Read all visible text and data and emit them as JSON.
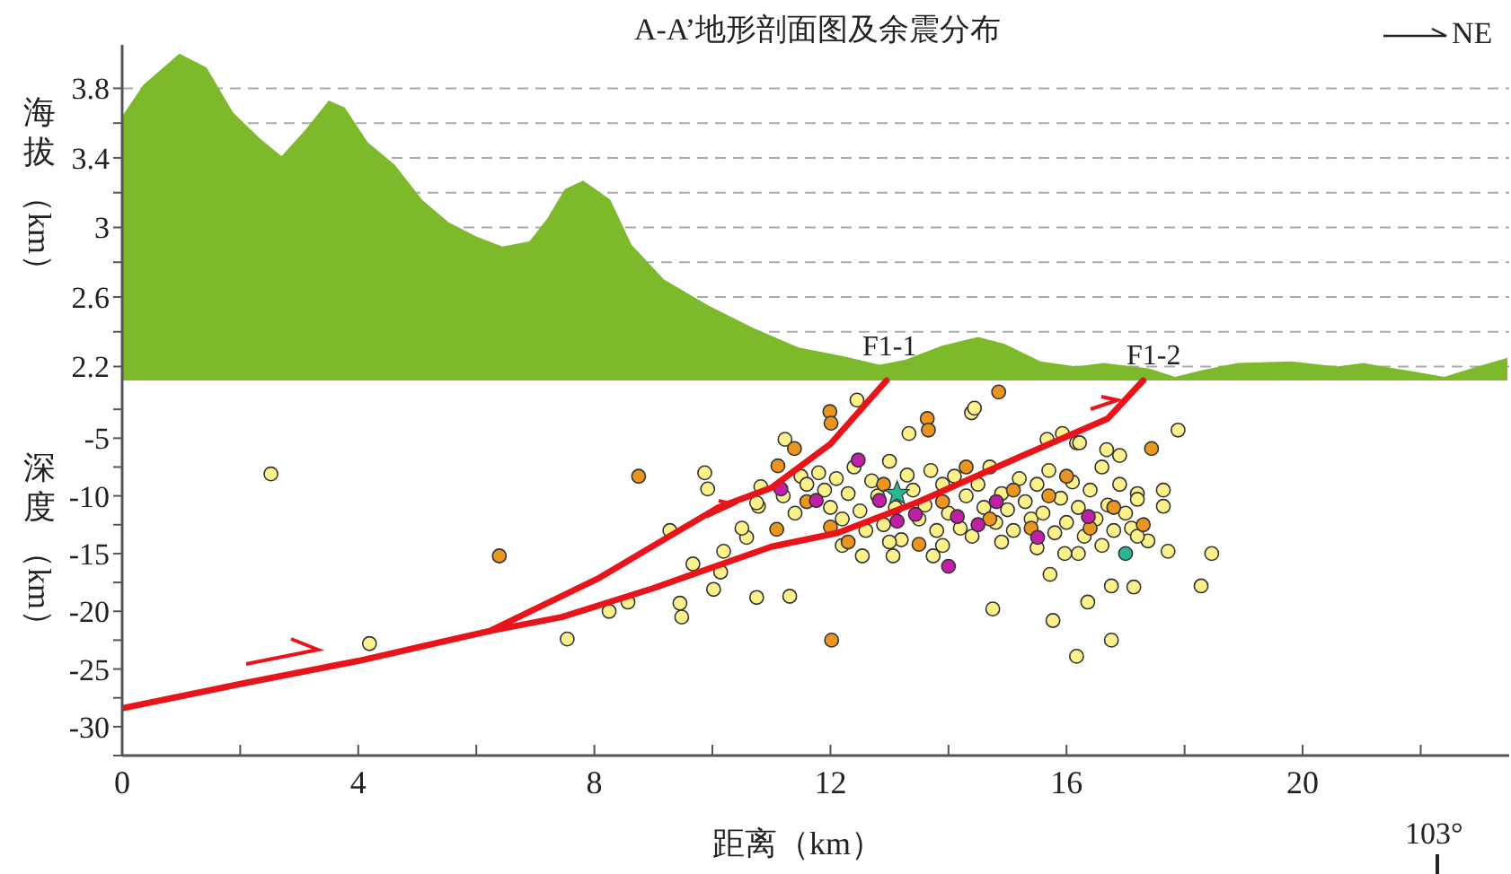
{
  "chart_data": [
    {
      "type": "area",
      "title": "A-A’地形剖面图及余震分布",
      "ylabel": "海拔（km）",
      "x": [
        0,
        0.36,
        0.97,
        1.43,
        1.88,
        2.34,
        2.7,
        3.1,
        3.5,
        3.77,
        4.16,
        4.62,
        5.08,
        5.53,
        5.99,
        6.44,
        6.9,
        7.2,
        7.5,
        7.81,
        8.27,
        8.63,
        9.18,
        9.94,
        10.7,
        11.46,
        12.22,
        12.83,
        13.28,
        13.89,
        14.5,
        14.95,
        15.56,
        16.17,
        16.63,
        17.39,
        17.84,
        18.3,
        18.9,
        19.82,
        20.58,
        21.03,
        21.9,
        22.4,
        22.86,
        23.47
      ],
      "series": [
        {
          "color": "#7dba2b",
          "values": [
            3.64,
            3.82,
            4.0,
            3.92,
            3.66,
            3.51,
            3.41,
            3.56,
            3.73,
            3.69,
            3.49,
            3.36,
            3.16,
            3.03,
            2.95,
            2.89,
            2.92,
            3.05,
            3.22,
            3.27,
            3.16,
            2.9,
            2.7,
            2.55,
            2.42,
            2.31,
            2.26,
            2.21,
            2.24,
            2.32,
            2.37,
            2.33,
            2.23,
            2.2,
            2.22,
            2.19,
            2.14,
            2.18,
            2.22,
            2.23,
            2.2,
            2.22,
            2.17,
            2.14,
            2.19,
            2.25
          ]
        }
      ],
      "xlim": [
        0,
        23.5
      ],
      "ylim": [
        2.12,
        4.05
      ],
      "yticks": [
        2.2,
        {
          "value": 2.4,
          "label": null
        },
        2.6,
        {
          "value": 2.8,
          "label": null
        },
        3,
        {
          "value": 3.2,
          "label": null
        },
        3.4,
        {
          "value": 3.6,
          "label": null
        },
        3.8
      ],
      "grid": "y",
      "tick_labels": "y",
      "annotations": [
        "F1-1",
        "F1-2",
        "NE"
      ]
    },
    {
      "type": "scatter",
      "xlabel": "距离（km）",
      "ylabel": "深度（km）",
      "xlim": [
        0,
        23.5
      ],
      "ylim": [
        -32.5,
        0
      ],
      "xticks": [
        0,
        {
          "value": 2,
          "label": null
        },
        4,
        {
          "value": 6,
          "label": null
        },
        8,
        {
          "value": 10,
          "label": null
        },
        12,
        {
          "value": 14,
          "label": null
        },
        16,
        {
          "value": 18,
          "label": null
        },
        20,
        {
          "value": 22,
          "label": null
        }
      ],
      "yticks": [
        {
          "value": -2.5,
          "label": null
        },
        -5,
        {
          "value": -7.5,
          "label": null
        },
        -10,
        {
          "value": -12.5,
          "label": null
        },
        -15,
        {
          "value": -17.5,
          "label": null
        },
        -20,
        {
          "value": -22.5,
          "label": null
        },
        -25,
        {
          "value": -27.5,
          "label": null
        },
        -30,
        {
          "value": -32.5,
          "label": null
        }
      ],
      "marker": "circle",
      "series": [
        {
          "color": "#fbf08a",
          "x": [
            2.52,
            4.19,
            7.54,
            8.25,
            8.57,
            9.28,
            9.45,
            9.48,
            9.67,
            9.87,
            9.92,
            10.02,
            10.14,
            10.58,
            10.78,
            10.75,
            17.89,
            10.75,
            11.31,
            14.75,
            15.77,
            16.17,
            16.76,
            16.36,
            16.76,
            17.14,
            18.28,
            18.46,
            17.72,
            15.72,
            17.64,
            17.64,
            17.38,
            17.2,
            16.68,
            16.9,
            16.17,
            14.39,
            14.44,
            13.33,
            12.45,
            11.23,
            10.82,
            10.5,
            10.19,
            13.06,
            12.54,
            13.74,
            15.97,
            16.2,
            15.93,
            16.22,
            15.67,
            11.5,
            11.6,
            11.8,
            11.9,
            12.0,
            12.1,
            12.2,
            12.3,
            12.4,
            12.5,
            12.6,
            12.7,
            12.8,
            12.9,
            13.0,
            13.1,
            13.2,
            13.3,
            13.4,
            13.5,
            13.6,
            13.7,
            13.8,
            13.9,
            14.0,
            14.1,
            14.2,
            14.3,
            14.4,
            14.5,
            14.6,
            14.7,
            14.8,
            14.9,
            15.0,
            15.1,
            15.2,
            15.3,
            15.4,
            15.5,
            15.6,
            15.7,
            15.8,
            15.9,
            16.0,
            16.1,
            16.2,
            16.3,
            16.4,
            16.5,
            16.6,
            16.7,
            16.8,
            16.9,
            17.0,
            17.1,
            17.2,
            11.2,
            11.4,
            12.2,
            13.0,
            13.9,
            14.9,
            15.5,
            16.6,
            17.2
          ],
          "values": [
            -8.1,
            -22.8,
            -22.4,
            -20.0,
            -19.2,
            -13.0,
            -19.3,
            -20.5,
            -15.9,
            -8.0,
            -9.4,
            -18.1,
            -16.6,
            -13.6,
            -10.9,
            -10.6,
            -4.3,
            -18.8,
            -18.7,
            -19.8,
            -20.8,
            -23.9,
            -22.5,
            -19.2,
            -17.8,
            -17.9,
            -17.8,
            -15.0,
            -14.8,
            -16.8,
            -9.5,
            -10.9,
            -13.9,
            -9.8,
            -6.0,
            -6.5,
            -5.4,
            -2.8,
            -2.4,
            -4.6,
            -1.7,
            -5.1,
            -9.2,
            -12.8,
            -14.8,
            -15.2,
            -15.2,
            -15.2,
            -15.0,
            -15.0,
            -4.6,
            -5.4,
            -5.1,
            -8.3,
            -9.0,
            -8.0,
            -9.5,
            -11.0,
            -8.5,
            -12.0,
            -9.8,
            -7.5,
            -11.3,
            -13.0,
            -8.7,
            -10.0,
            -12.5,
            -7.0,
            -11.0,
            -13.8,
            -8.2,
            -9.5,
            -12.0,
            -10.8,
            -7.8,
            -13.0,
            -9.0,
            -11.5,
            -8.3,
            -12.8,
            -10.0,
            -13.5,
            -9.0,
            -11.0,
            -7.5,
            -12.3,
            -9.8,
            -11.2,
            -13.0,
            -8.5,
            -10.5,
            -12.0,
            -9.0,
            -11.5,
            -7.8,
            -13.2,
            -10.2,
            -12.3,
            -8.8,
            -11.0,
            -13.5,
            -9.5,
            -12.0,
            -7.5,
            -10.8,
            -13.0,
            -9.0,
            -11.5,
            -12.8,
            -10.3,
            -10.0,
            -11.5,
            -14.3,
            -14.0,
            -14.3,
            -14.0,
            -14.5,
            -14.3,
            -13.5
          ]
        },
        {
          "color": "#e9951f",
          "x": [
            6.39,
            8.75,
            14.85,
            13.64,
            13.66,
            11.99,
            12.01,
            11.39,
            11.11,
            11.09,
            12.02,
            17.44,
            11.6,
            12.3,
            12.9,
            13.5,
            13.9,
            14.3,
            14.7,
            15.1,
            15.4,
            15.7,
            16.0,
            16.4,
            16.8,
            17.3,
            12.0
          ],
          "values": [
            -15.2,
            -8.3,
            -1.0,
            -3.3,
            -4.3,
            -2.7,
            -3.7,
            -5.9,
            -7.4,
            -12.9,
            -22.5,
            -5.9,
            -10.5,
            -14.0,
            -9.0,
            -14.2,
            -10.5,
            -7.5,
            -12.0,
            -9.5,
            -12.8,
            -10.0,
            -8.3,
            -12.8,
            -11.0,
            -12.5,
            -12.7
          ]
        },
        {
          "color": "#c21fa8",
          "x": [
            14.0,
            11.16,
            11.76,
            12.83,
            13.44,
            14.15,
            14.5,
            14.81,
            15.51,
            16.37,
            13.13,
            12.47
          ],
          "values": [
            -16.1,
            -9.4,
            -10.4,
            -10.4,
            -11.6,
            -11.8,
            -12.5,
            -10.5,
            -13.6,
            -11.8,
            -12.2,
            -6.9
          ]
        },
        {
          "color": "#2bb593",
          "x": [
            17.0
          ],
          "values": [
            -15.0
          ]
        },
        {
          "color": "#2bb593",
          "marker": "star",
          "x": [
            13.13
          ],
          "values": [
            -9.8
          ]
        },
        {
          "type": "line",
          "marker": "none",
          "color": "#e8141a",
          "x": [
            0,
            2,
            4,
            6.23,
            8.05,
            10.1,
            11.0,
            12.0,
            12.95
          ],
          "values": [
            -28.4,
            -26.3,
            -24.3,
            -21.7,
            -17.2,
            -11.0,
            -9.3,
            -5.5,
            0
          ]
        },
        {
          "type": "line",
          "marker": "none",
          "color": "#e8141a",
          "x": [
            6.23,
            7.45,
            9,
            11.0,
            12.13,
            13.5,
            15.17,
            16.7,
            17.3
          ],
          "values": [
            -21.7,
            -20.5,
            -18,
            -14.4,
            -13.2,
            -10.5,
            -6.7,
            -3.3,
            0
          ]
        }
      ],
      "annotations": [
        "103°"
      ]
    }
  ]
}
